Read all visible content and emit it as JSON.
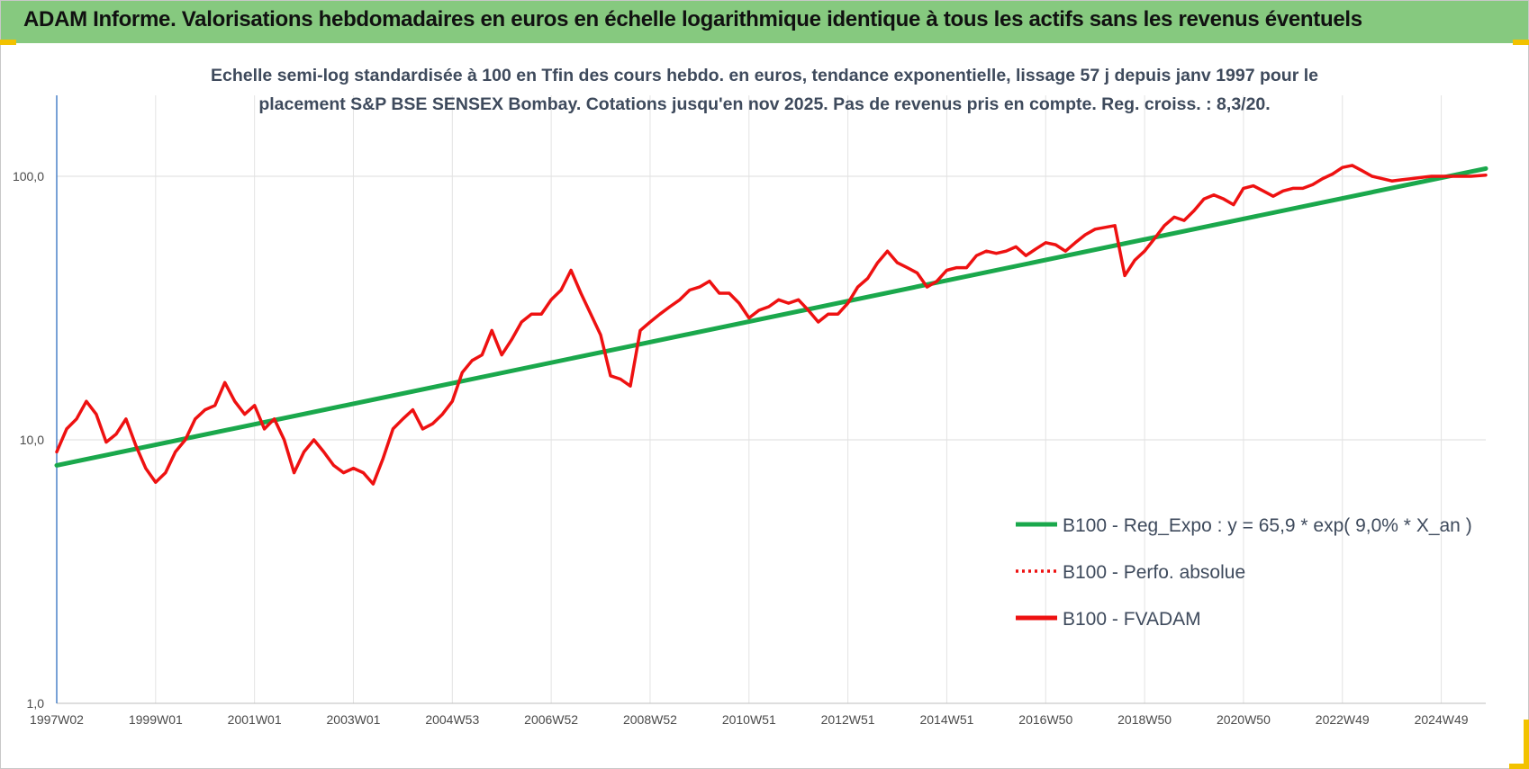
{
  "header": {
    "title": "ADAM Informe. Valorisations hebdomadaires en euros en échelle logarithmique identique à tous les actifs sans les revenus éventuels"
  },
  "colors": {
    "banner": "#86c97f",
    "regression": "#1aa84c",
    "series": "#ee1111",
    "accent_corner": "#f2c200"
  },
  "chart_data": {
    "type": "line",
    "title_lines": [
      "Echelle semi-log standardisée à 100 en Tfin des cours hebdo. en euros, tendance exponentielle, lissage 57 j depuis janv 1997 pour le",
      "placement S&P BSE SENSEX Bombay. Cotations jusqu'en nov 2025. Pas de revenus pris en compte. Reg. croiss. : 8,3/20."
    ],
    "y_scale": "log",
    "ylim": [
      1,
      200
    ],
    "y_ticks": [
      1,
      10,
      100
    ],
    "y_tick_labels": [
      "1,0",
      "10,0",
      "100,0"
    ],
    "xlim": [
      1997.0,
      2025.9
    ],
    "x_ticks": [
      1997.0,
      1999.0,
      2001.0,
      2003.0,
      2005.0,
      2007.0,
      2009.0,
      2011.0,
      2013.0,
      2015.0,
      2017.0,
      2019.0,
      2021.0,
      2023.0,
      2025.0
    ],
    "x_tick_labels": [
      "1997W02",
      "1999W01",
      "2001W01",
      "2003W01",
      "2004W53",
      "2006W52",
      "2008W52",
      "2010W51",
      "2012W51",
      "2014W51",
      "2016W50",
      "2018W50",
      "2020W50",
      "2022W49",
      "2024W49"
    ],
    "grid": true,
    "legend_position": "right",
    "series": [
      {
        "name": "B100 - Reg_Expo : y = 65,9 * exp( 9,0% *  X_an )",
        "style": "solid-thick",
        "color": "#1aa84c",
        "x": [
          1997.0,
          2025.9
        ],
        "y": [
          8.0,
          107.0
        ]
      },
      {
        "name": "B100 - Perfo. absolue",
        "style": "dotted",
        "color": "#ee1111",
        "x": [],
        "y": []
      },
      {
        "name": "B100 - FVADAM",
        "style": "solid",
        "color": "#ee1111",
        "x": [
          1997.0,
          1997.2,
          1997.4,
          1997.6,
          1997.8,
          1998.0,
          1998.2,
          1998.4,
          1998.6,
          1998.8,
          1999.0,
          1999.2,
          1999.4,
          1999.6,
          1999.8,
          2000.0,
          2000.2,
          2000.4,
          2000.6,
          2000.8,
          2001.0,
          2001.2,
          2001.4,
          2001.6,
          2001.8,
          2002.0,
          2002.2,
          2002.4,
          2002.6,
          2002.8,
          2003.0,
          2003.2,
          2003.4,
          2003.6,
          2003.8,
          2004.0,
          2004.2,
          2004.4,
          2004.6,
          2004.8,
          2005.0,
          2005.2,
          2005.4,
          2005.6,
          2005.8,
          2006.0,
          2006.2,
          2006.4,
          2006.6,
          2006.8,
          2007.0,
          2007.2,
          2007.4,
          2007.6,
          2007.8,
          2008.0,
          2008.2,
          2008.4,
          2008.6,
          2008.8,
          2009.0,
          2009.2,
          2009.4,
          2009.6,
          2009.8,
          2010.0,
          2010.2,
          2010.4,
          2010.6,
          2010.8,
          2011.0,
          2011.2,
          2011.4,
          2011.6,
          2011.8,
          2012.0,
          2012.2,
          2012.4,
          2012.6,
          2012.8,
          2013.0,
          2013.2,
          2013.4,
          2013.6,
          2013.8,
          2014.0,
          2014.2,
          2014.4,
          2014.6,
          2014.8,
          2015.0,
          2015.2,
          2015.4,
          2015.6,
          2015.8,
          2016.0,
          2016.2,
          2016.4,
          2016.6,
          2016.8,
          2017.0,
          2017.2,
          2017.4,
          2017.6,
          2017.8,
          2018.0,
          2018.2,
          2018.4,
          2018.6,
          2018.8,
          2019.0,
          2019.2,
          2019.4,
          2019.6,
          2019.8,
          2020.0,
          2020.2,
          2020.4,
          2020.6,
          2020.8,
          2021.0,
          2021.2,
          2021.4,
          2021.6,
          2021.8,
          2022.0,
          2022.2,
          2022.4,
          2022.6,
          2022.8,
          2023.0,
          2023.2,
          2023.4,
          2023.6,
          2023.8,
          2024.0,
          2024.2,
          2024.4,
          2024.6,
          2024.8,
          2025.0,
          2025.2,
          2025.4,
          2025.6,
          2025.9
        ],
        "y": [
          9.0,
          11.0,
          12.0,
          14.0,
          12.5,
          9.8,
          10.5,
          12.0,
          9.5,
          7.8,
          6.9,
          7.5,
          9.0,
          10.0,
          12.0,
          13.0,
          13.5,
          16.5,
          14.0,
          12.5,
          13.5,
          11.0,
          12.0,
          10.0,
          7.5,
          9.0,
          10.0,
          9.0,
          8.0,
          7.5,
          7.8,
          7.5,
          6.8,
          8.5,
          11.0,
          12.0,
          13.0,
          11.0,
          11.5,
          12.5,
          14.0,
          18.0,
          20.0,
          21.0,
          26.0,
          21.0,
          24.0,
          28.0,
          30.0,
          30.0,
          34.0,
          37.0,
          44.0,
          36.0,
          30.0,
          25.0,
          17.5,
          17.0,
          16.0,
          26.0,
          28.0,
          30.0,
          32.0,
          34.0,
          37.0,
          38.0,
          40.0,
          36.0,
          36.0,
          33.0,
          29.0,
          31.0,
          32.0,
          34.0,
          33.0,
          34.0,
          31.0,
          28.0,
          30.0,
          30.0,
          33.0,
          38.0,
          41.0,
          47.0,
          52.0,
          47.0,
          45.0,
          43.0,
          38.0,
          40.0,
          44.0,
          45.0,
          45.0,
          50.0,
          52.0,
          51.0,
          52.0,
          54.0,
          50.0,
          53.0,
          56.0,
          55.0,
          52.0,
          56.0,
          60.0,
          63.0,
          64.0,
          65.0,
          42.0,
          48.0,
          52.0,
          58.0,
          65.0,
          70.0,
          68.0,
          74.0,
          82.0,
          85.0,
          82.0,
          78.0,
          90.0,
          92.0,
          88.0,
          84.0,
          88.0,
          90.0,
          90.0,
          93.0,
          98.0,
          102.0,
          108.0,
          110.0,
          105.0,
          100.0,
          98.0,
          96.0,
          97.0,
          98.0,
          99.0,
          100.0,
          100.0,
          100.0,
          100.0,
          100.0,
          101.0
        ]
      }
    ]
  }
}
